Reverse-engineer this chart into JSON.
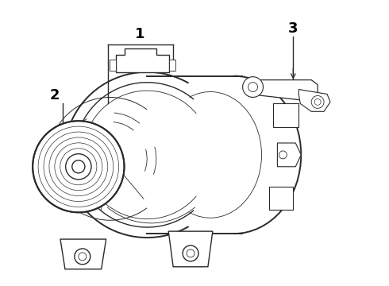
{
  "background_color": "#ffffff",
  "line_color": "#2a2a2a",
  "label_color": "#000000",
  "figsize": [
    4.9,
    3.6
  ],
  "dpi": 100,
  "label_fontsize": 13,
  "label_fontweight": "bold",
  "lw_main": 1.0,
  "lw_thin": 0.6,
  "lw_thick": 1.4
}
